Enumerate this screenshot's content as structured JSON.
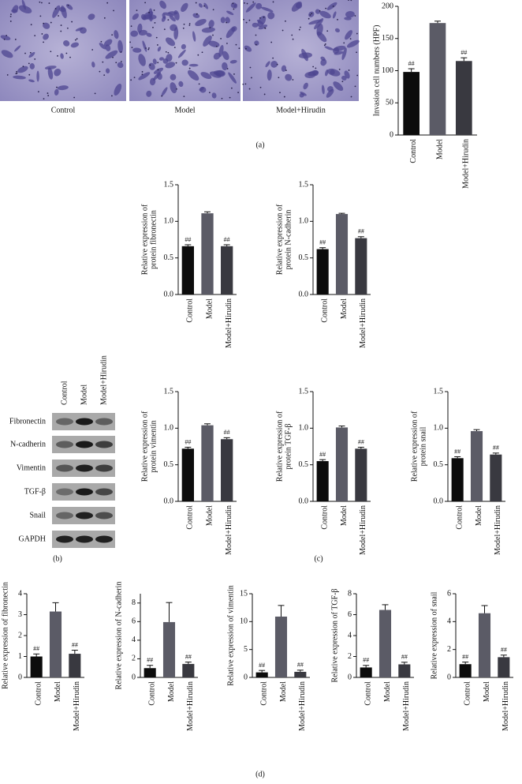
{
  "figure": {
    "image_labels": [
      "Control",
      "Model",
      "Model+Hirudin"
    ],
    "blot_lanes": [
      "Control",
      "Model",
      "Model+Hirudin"
    ],
    "blot_rows": [
      "Fibronectin",
      "N-cadherin",
      "Vimentin",
      "TGF-β",
      "Snail",
      "GAPDH"
    ],
    "panel_labels": [
      "(a)",
      "(b)",
      "(c)",
      "(d)"
    ]
  },
  "chart_data": [
    {
      "type": "bar",
      "ylabel": "Invasion cell numbers (HPF)",
      "categories": [
        "Control",
        "Model",
        "Model+Hirudin"
      ],
      "values": [
        98,
        174,
        115
      ],
      "errors": [
        5,
        3,
        5
      ],
      "significance": [
        "##",
        null,
        "##"
      ],
      "colors": [
        "#0c0c0c",
        "#5b5b66",
        "#393940"
      ],
      "ylim": [
        0,
        200
      ],
      "yticks": [
        0,
        50,
        100,
        150,
        200
      ]
    },
    {
      "type": "bar",
      "ylabel": [
        "Relative expression of",
        "protein fibronectin"
      ],
      "categories": [
        "Control",
        "Model",
        "Model+Hirudin"
      ],
      "values": [
        0.66,
        1.11,
        0.66
      ],
      "errors": [
        0.02,
        0.02,
        0.02
      ],
      "significance": [
        "##",
        null,
        "##"
      ],
      "colors": [
        "#0c0c0c",
        "#5b5b66",
        "#393940"
      ],
      "ylim": [
        0,
        1.5
      ],
      "yticks": [
        {
          "value": 0,
          "label": "0.0"
        },
        0.5,
        {
          "value": 1,
          "label": "1.0"
        },
        1.5
      ]
    },
    {
      "type": "bar",
      "ylabel": [
        "Relative expression of",
        "protein N-cadherin"
      ],
      "categories": [
        "Control",
        "Model",
        "Model+Hirudin"
      ],
      "values": [
        0.62,
        1.1,
        0.77
      ],
      "errors": [
        0.02,
        0.01,
        0.02
      ],
      "significance": [
        "##",
        null,
        "##"
      ],
      "colors": [
        "#0c0c0c",
        "#5b5b66",
        "#393940"
      ],
      "ylim": [
        0,
        1.5
      ],
      "yticks": [
        {
          "value": 0,
          "label": "0.0"
        },
        0.5,
        {
          "value": 1,
          "label": "1.0"
        },
        1.5
      ]
    },
    {
      "type": "bar",
      "ylabel": [
        "Relative expression of",
        "protein vimentin"
      ],
      "categories": [
        "Control",
        "Model",
        "Model+Hirudin"
      ],
      "values": [
        0.72,
        1.04,
        0.85
      ],
      "errors": [
        0.02,
        0.02,
        0.02
      ],
      "significance": [
        "##",
        null,
        "##"
      ],
      "colors": [
        "#0c0c0c",
        "#5b5b66",
        "#393940"
      ],
      "ylim": [
        0,
        1.5
      ],
      "yticks": [
        {
          "value": 0,
          "label": "0.0"
        },
        0.5,
        {
          "value": 1,
          "label": "1.0"
        },
        1.5
      ]
    },
    {
      "type": "bar",
      "ylabel": [
        "Relative expression of",
        "protein TGF-β"
      ],
      "categories": [
        "Control",
        "Model",
        "Model+Hirudin"
      ],
      "values": [
        0.55,
        1.01,
        0.72
      ],
      "errors": [
        0.02,
        0.02,
        0.02
      ],
      "significance": [
        "##",
        null,
        "##"
      ],
      "colors": [
        "#0c0c0c",
        "#5b5b66",
        "#393940"
      ],
      "ylim": [
        0,
        1.5
      ],
      "yticks": [
        {
          "value": 0,
          "label": "0.0"
        },
        0.5,
        {
          "value": 1,
          "label": "1.0"
        },
        1.5
      ]
    },
    {
      "type": "bar",
      "ylabel": [
        "Relative expression of",
        "protein snail"
      ],
      "categories": [
        "Control",
        "Model",
        "Model+Hirudin"
      ],
      "values": [
        0.59,
        0.96,
        0.64
      ],
      "errors": [
        0.02,
        0.02,
        0.02
      ],
      "significance": [
        "##",
        null,
        "##"
      ],
      "colors": [
        "#0c0c0c",
        "#5b5b66",
        "#393940"
      ],
      "ylim": [
        0,
        1.5
      ],
      "yticks": [
        {
          "value": 0,
          "label": "0.0"
        },
        0.5,
        {
          "value": 1,
          "label": "1.0"
        },
        1.5
      ]
    },
    {
      "type": "bar",
      "ylabel": "Relative expression of fibronectin",
      "categories": [
        "Control",
        "Model",
        "Model+Hirudin"
      ],
      "values": [
        1.0,
        3.15,
        1.13
      ],
      "errors": [
        0.12,
        0.42,
        0.17
      ],
      "significance": [
        "##",
        null,
        "##"
      ],
      "colors": [
        "#0c0c0c",
        "#5b5b66",
        "#393940"
      ],
      "ylim": [
        0,
        4
      ],
      "yticks": [
        0,
        1,
        2,
        3,
        4
      ]
    },
    {
      "type": "bar",
      "ylabel": "Relative expression of N-cadherin",
      "categories": [
        "Control",
        "Model",
        "Model+Hirudin"
      ],
      "values": [
        1.0,
        5.95,
        1.45
      ],
      "errors": [
        0.3,
        2.1,
        0.2
      ],
      "significance": [
        "##",
        null,
        "##"
      ],
      "colors": [
        "#0c0c0c",
        "#5b5b66",
        "#393940"
      ],
      "ylim": [
        0,
        9
      ],
      "yticks": [
        0,
        2,
        4,
        6,
        8
      ]
    },
    {
      "type": "bar",
      "ylabel": "Relative expression of vimentin",
      "categories": [
        "Control",
        "Model",
        "Model+Hirudin"
      ],
      "values": [
        0.9,
        10.9,
        1.0
      ],
      "errors": [
        0.35,
        2.0,
        0.3
      ],
      "significance": [
        "##",
        null,
        "##"
      ],
      "colors": [
        "#0c0c0c",
        "#5b5b66",
        "#393940"
      ],
      "ylim": [
        0,
        15
      ],
      "yticks": [
        0,
        5,
        10,
        15
      ]
    },
    {
      "type": "bar",
      "ylabel": "Relative expression of TGF-β",
      "categories": [
        "Control",
        "Model",
        "Model+Hirudin"
      ],
      "values": [
        0.95,
        6.45,
        1.25
      ],
      "errors": [
        0.2,
        0.5,
        0.2
      ],
      "significance": [
        "##",
        null,
        "##"
      ],
      "colors": [
        "#0c0c0c",
        "#5b5b66",
        "#393940"
      ],
      "ylim": [
        0,
        8
      ],
      "yticks": [
        0,
        2,
        4,
        6,
        8
      ]
    },
    {
      "type": "bar",
      "ylabel": "Relative expression of snail",
      "categories": [
        "Control",
        "Model",
        "Model+Hirudin"
      ],
      "values": [
        0.95,
        4.6,
        1.45
      ],
      "errors": [
        0.15,
        0.55,
        0.15
      ],
      "significance": [
        "##",
        null,
        "##"
      ],
      "colors": [
        "#0c0c0c",
        "#5b5b66",
        "#393940"
      ],
      "ylim": [
        0,
        6
      ],
      "yticks": [
        0,
        2,
        4,
        6
      ]
    }
  ]
}
